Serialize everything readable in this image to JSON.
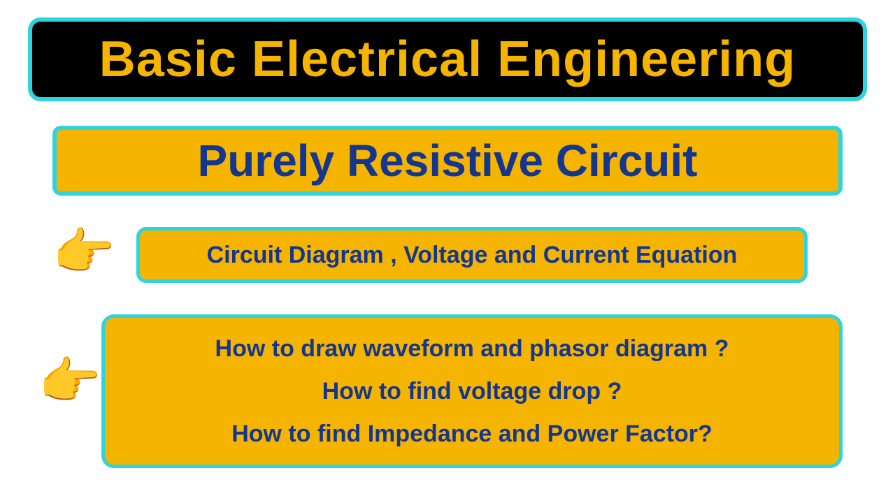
{
  "colors": {
    "background": "#ffffff",
    "title_bg": "#000000",
    "title_fg": "#f5b400",
    "border": "#2dd4e0",
    "box_bg": "#f5b400",
    "box_fg": "#14368f",
    "pointer": "#e03030"
  },
  "typography": {
    "title_fontsize": 72,
    "subtitle_fontsize": 64,
    "body_fontsize": 34,
    "title_weight": 900,
    "body_weight": 800
  },
  "title": "Basic Electrical Engineering",
  "subtitle": "Purely Resistive Circuit",
  "topic": "Circuit Diagram , Voltage and Current Equation",
  "questions": [
    "How to draw waveform and phasor diagram ?",
    "How to find voltage drop ?",
    "How to find Impedance and Power Factor?"
  ],
  "pointer_glyph": "👉"
}
